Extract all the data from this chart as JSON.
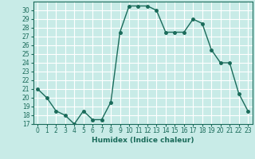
{
  "x": [
    0,
    1,
    2,
    3,
    4,
    5,
    6,
    7,
    8,
    9,
    10,
    11,
    12,
    13,
    14,
    15,
    16,
    17,
    18,
    19,
    20,
    21,
    22,
    23
  ],
  "y": [
    21,
    20,
    18.5,
    18,
    17,
    18.5,
    17.5,
    17.5,
    19.5,
    27.5,
    30.5,
    30.5,
    30.5,
    30,
    27.5,
    27.5,
    27.5,
    29,
    28.5,
    25.5,
    24,
    24,
    20.5,
    18.5
  ],
  "line_color": "#1a6b5a",
  "bg_color": "#c8ebe7",
  "grid_color": "#ffffff",
  "xlabel": "Humidex (Indice chaleur)",
  "ylim": [
    17,
    31
  ],
  "xlim": [
    -0.5,
    23.5
  ],
  "yticks": [
    17,
    18,
    19,
    20,
    21,
    22,
    23,
    24,
    25,
    26,
    27,
    28,
    29,
    30
  ],
  "xticks": [
    0,
    1,
    2,
    3,
    4,
    5,
    6,
    7,
    8,
    9,
    10,
    11,
    12,
    13,
    14,
    15,
    16,
    17,
    18,
    19,
    20,
    21,
    22,
    23
  ],
  "tick_fontsize": 5.5,
  "xlabel_fontsize": 6.5,
  "marker_size": 2.5,
  "line_width": 1.0
}
